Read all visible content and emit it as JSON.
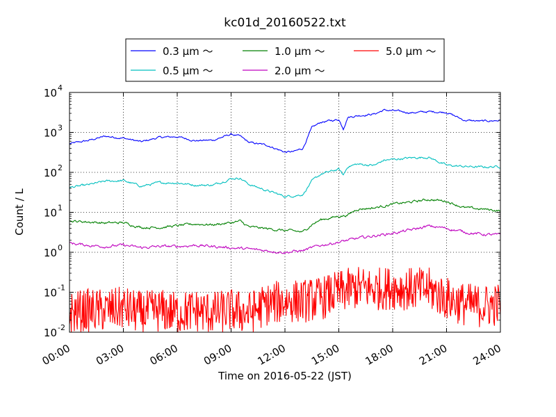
{
  "chart_data": {
    "type": "line",
    "title": "kc01d_20160522.txt",
    "xlabel": "Time on 2016-05-22 (JST)",
    "ylabel": "Count / L",
    "yscale": "log",
    "xlim": [
      "00:00",
      "24:00"
    ],
    "ylim": [
      0.01,
      10000
    ],
    "grid": true,
    "legend_position": "top-center",
    "x_ticks": [
      "00:00",
      "03:00",
      "06:00",
      "09:00",
      "12:00",
      "15:00",
      "18:00",
      "21:00",
      "24:00"
    ],
    "y_ticks": [
      {
        "value": 0.01,
        "base": "10",
        "exp": "-2"
      },
      {
        "value": 0.1,
        "base": "10",
        "exp": "-1"
      },
      {
        "value": 1,
        "base": "10",
        "exp": "0"
      },
      {
        "value": 10,
        "base": "10",
        "exp": "1"
      },
      {
        "value": 100,
        "base": "10",
        "exp": "2"
      },
      {
        "value": 1000,
        "base": "10",
        "exp": "3"
      },
      {
        "value": 10000,
        "base": "10",
        "exp": "4"
      }
    ],
    "series": [
      {
        "name": "0.3 μm ～",
        "color": "#0000ff",
        "x": [
          "00:00",
          "01:00",
          "02:00",
          "03:00",
          "04:00",
          "05:00",
          "06:00",
          "07:00",
          "08:00",
          "09:00",
          "09:30",
          "10:00",
          "11:00",
          "12:00",
          "12:30",
          "13:00",
          "13:30",
          "14:00",
          "15:00",
          "15:15",
          "15:30",
          "16:00",
          "17:00",
          "17:30",
          "18:00",
          "19:00",
          "20:00",
          "21:00",
          "22:00",
          "23:00",
          "24:00"
        ],
        "values": [
          520,
          620,
          800,
          720,
          580,
          750,
          780,
          620,
          640,
          900,
          800,
          560,
          480,
          320,
          330,
          400,
          1300,
          1800,
          2100,
          1250,
          2400,
          2600,
          2900,
          3600,
          3500,
          3100,
          3300,
          3200,
          2000,
          1900,
          2000
        ]
      },
      {
        "name": "0.5 μm ～",
        "color": "#00bfbf",
        "x": [
          "00:00",
          "01:00",
          "02:00",
          "03:00",
          "04:00",
          "05:00",
          "06:00",
          "07:00",
          "08:00",
          "09:00",
          "09:30",
          "10:00",
          "11:00",
          "12:00",
          "12:30",
          "13:00",
          "13:30",
          "14:00",
          "15:00",
          "15:15",
          "15:30",
          "16:00",
          "17:00",
          "17:30",
          "18:00",
          "19:00",
          "20:00",
          "21:00",
          "22:00",
          "23:00",
          "24:00"
        ],
        "values": [
          42,
          48,
          60,
          62,
          45,
          55,
          55,
          48,
          48,
          70,
          72,
          50,
          35,
          25,
          26,
          28,
          60,
          90,
          120,
          85,
          140,
          160,
          150,
          200,
          210,
          230,
          240,
          150,
          140,
          135,
          140
        ]
      },
      {
        "name": "1.0 μm ～",
        "color": "#008000",
        "x": [
          "00:00",
          "01:00",
          "02:00",
          "03:00",
          "04:00",
          "05:00",
          "06:00",
          "07:00",
          "08:00",
          "09:00",
          "09:30",
          "10:00",
          "11:00",
          "12:00",
          "12:30",
          "13:00",
          "13:30",
          "14:00",
          "15:00",
          "15:30",
          "16:00",
          "17:00",
          "18:00",
          "19:00",
          "20:00",
          "21:00",
          "22:00",
          "23:00",
          "24:00"
        ],
        "values": [
          6,
          5.8,
          5.4,
          5.5,
          4.2,
          4.2,
          4.6,
          5.1,
          4.9,
          5.5,
          6,
          4.3,
          3.9,
          3.5,
          3.4,
          3.2,
          5,
          6.5,
          8,
          8.5,
          12,
          13,
          16,
          18,
          21,
          19,
          13,
          12,
          11
        ]
      },
      {
        "name": "2.0 μm ～",
        "color": "#bf00bf",
        "x": [
          "00:00",
          "01:00",
          "02:00",
          "03:00",
          "04:00",
          "05:00",
          "06:00",
          "07:00",
          "08:00",
          "09:00",
          "10:00",
          "11:00",
          "12:00",
          "13:00",
          "14:00",
          "15:00",
          "16:00",
          "17:00",
          "18:00",
          "19:00",
          "20:00",
          "21:00",
          "22:00",
          "23:00",
          "24:00"
        ],
        "values": [
          1.7,
          1.5,
          1.4,
          1.5,
          1.3,
          1.4,
          1.4,
          1.5,
          1.4,
          1.3,
          1.2,
          1.1,
          1.0,
          1.1,
          1.5,
          1.8,
          2.2,
          2.6,
          3.0,
          3.6,
          4.5,
          4.0,
          3.2,
          2.8,
          2.7
        ]
      },
      {
        "name": "5.0 μm ～",
        "color": "#ff0000",
        "x": [
          "00:00",
          "01:00",
          "02:00",
          "03:00",
          "04:00",
          "05:00",
          "06:00",
          "07:00",
          "08:00",
          "09:00",
          "10:00",
          "11:00",
          "12:00",
          "13:00",
          "14:00",
          "15:00",
          "16:00",
          "17:00",
          "18:00",
          "19:00",
          "20:00",
          "21:00",
          "22:00",
          "23:00",
          "24:00"
        ],
        "values": [
          0.03,
          0.035,
          0.035,
          0.04,
          0.03,
          0.035,
          0.03,
          0.035,
          0.03,
          0.035,
          0.03,
          0.05,
          0.06,
          0.06,
          0.07,
          0.1,
          0.13,
          0.12,
          0.13,
          0.12,
          0.12,
          0.07,
          0.05,
          0.045,
          0.05
        ]
      }
    ]
  }
}
